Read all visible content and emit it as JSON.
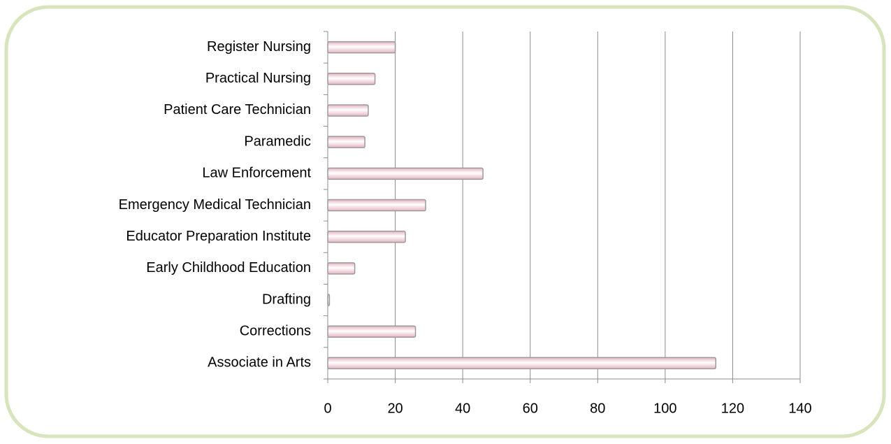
{
  "chart_data": {
    "type": "barh",
    "categories": [
      "Associate in Arts",
      "Corrections",
      "Drafting",
      "Early Childhood Education",
      "Educator Preparation Institute",
      "Emergency Medical Technician",
      "Law Enforcement",
      "Paramedic",
      "Patient Care Technician",
      "Practical Nursing",
      "Register Nursing"
    ],
    "values": [
      115,
      26,
      0.5,
      8,
      23,
      29,
      46,
      11,
      12,
      14,
      20
    ],
    "color": "#e6b3c0",
    "xlim": [
      0,
      140
    ],
    "xticks": [
      0,
      20,
      40,
      60,
      80,
      100,
      120,
      140
    ],
    "grid": true
  }
}
